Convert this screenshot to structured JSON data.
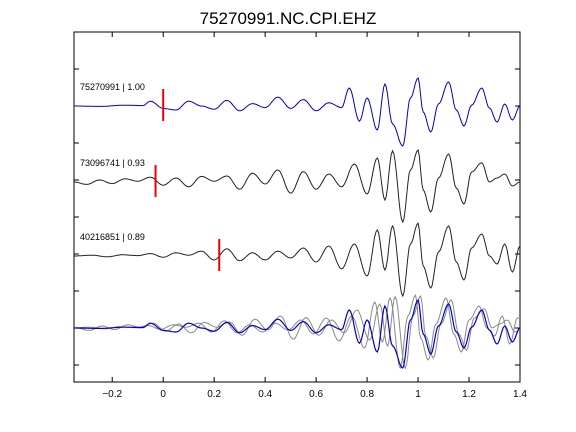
{
  "chart_data": {
    "type": "line",
    "title": "75270991.NC.CPI.EHZ",
    "xlabel": "",
    "ylabel": "",
    "xlim": [
      -0.35,
      1.4
    ],
    "x_ticks": [
      -0.2,
      0,
      0.2,
      0.4,
      0.6,
      0.8,
      1,
      1.2,
      1.4
    ],
    "x_tick_labels": [
      "−0.2",
      "0",
      "0.2",
      "0.4",
      "0.6",
      "0.8",
      "1",
      "1.2",
      "1.4"
    ],
    "grid": false,
    "legend": "none",
    "colors": {
      "master": "#0000cc",
      "other": "#222222",
      "overlay_other": "#888888",
      "pick": "#ee0000"
    },
    "series": [
      {
        "label": "75270991 | 1.00",
        "pick_time": 0.0,
        "x": [
          -0.35,
          -0.25,
          -0.15,
          -0.08,
          -0.05,
          0.0,
          0.05,
          0.1,
          0.15,
          0.2,
          0.25,
          0.3,
          0.35,
          0.4,
          0.45,
          0.5,
          0.55,
          0.6,
          0.65,
          0.7,
          0.73,
          0.77,
          0.8,
          0.84,
          0.87,
          0.9,
          0.94,
          0.97,
          1.0,
          1.02,
          1.05,
          1.08,
          1.12,
          1.15,
          1.18,
          1.21,
          1.25,
          1.28,
          1.31,
          1.34,
          1.37,
          1.4
        ],
        "y": [
          0,
          -0.01,
          0.02,
          0.01,
          0.12,
          -0.06,
          -0.1,
          0.12,
          0,
          -0.08,
          0.14,
          -0.12,
          0.06,
          -0.04,
          0.22,
          -0.06,
          0.16,
          -0.12,
          0.08,
          -0.04,
          0.45,
          -0.38,
          0.2,
          -0.6,
          0.55,
          -0.45,
          -1.0,
          0.2,
          0.7,
          -0.15,
          -0.65,
          0.05,
          0.6,
          -0.1,
          -0.5,
          0.02,
          0.45,
          -0.05,
          -0.4,
          0.05,
          -0.35,
          0.0
        ]
      },
      {
        "label": "73096741 | 0.93",
        "pick_time": -0.03,
        "x": [
          -0.35,
          -0.3,
          -0.25,
          -0.2,
          -0.15,
          -0.1,
          -0.05,
          0.0,
          0.05,
          0.1,
          0.15,
          0.2,
          0.25,
          0.3,
          0.35,
          0.4,
          0.45,
          0.5,
          0.55,
          0.6,
          0.65,
          0.7,
          0.75,
          0.8,
          0.84,
          0.87,
          0.9,
          0.94,
          0.97,
          1.0,
          1.02,
          1.05,
          1.08,
          1.12,
          1.15,
          1.18,
          1.21,
          1.25,
          1.28,
          1.31,
          1.34,
          1.37,
          1.4
        ],
        "y": [
          0,
          -0.06,
          0.05,
          -0.04,
          0.08,
          0.02,
          0.12,
          -0.08,
          0.1,
          -0.12,
          0.14,
          0.02,
          0.15,
          -0.18,
          0.22,
          -0.05,
          0.3,
          -0.28,
          0.26,
          -0.18,
          0.2,
          -0.12,
          0.45,
          -0.3,
          0.6,
          -0.45,
          0.78,
          -1.0,
          0.3,
          0.8,
          -0.2,
          -0.75,
          0.1,
          0.7,
          -0.15,
          -0.55,
          0.25,
          0.48,
          0.0,
          0.1,
          0.2,
          -0.1,
          0.0
        ]
      },
      {
        "label": "40216851 | 0.89",
        "pick_time": 0.22,
        "x": [
          -0.35,
          -0.28,
          -0.22,
          -0.16,
          -0.1,
          -0.05,
          0.0,
          0.05,
          0.1,
          0.15,
          0.2,
          0.25,
          0.3,
          0.35,
          0.4,
          0.45,
          0.5,
          0.55,
          0.6,
          0.65,
          0.7,
          0.75,
          0.8,
          0.84,
          0.87,
          0.9,
          0.94,
          0.97,
          1.0,
          1.02,
          1.05,
          1.08,
          1.12,
          1.15,
          1.18,
          1.21,
          1.25,
          1.28,
          1.31,
          1.34,
          1.37,
          1.4
        ],
        "y": [
          0,
          0.02,
          -0.02,
          0.03,
          0.01,
          0.06,
          -0.03,
          0.08,
          0.02,
          0.12,
          -0.1,
          0.18,
          -0.12,
          0.08,
          -0.1,
          0.12,
          -0.05,
          0.2,
          -0.15,
          0.25,
          -0.32,
          0.3,
          -0.5,
          0.65,
          -0.35,
          0.75,
          -1.0,
          0.3,
          0.82,
          -0.25,
          -0.8,
          0.1,
          0.75,
          -0.15,
          -0.6,
          0.2,
          0.55,
          0.0,
          -0.2,
          0.3,
          -0.4,
          0.25
        ]
      }
    ]
  }
}
